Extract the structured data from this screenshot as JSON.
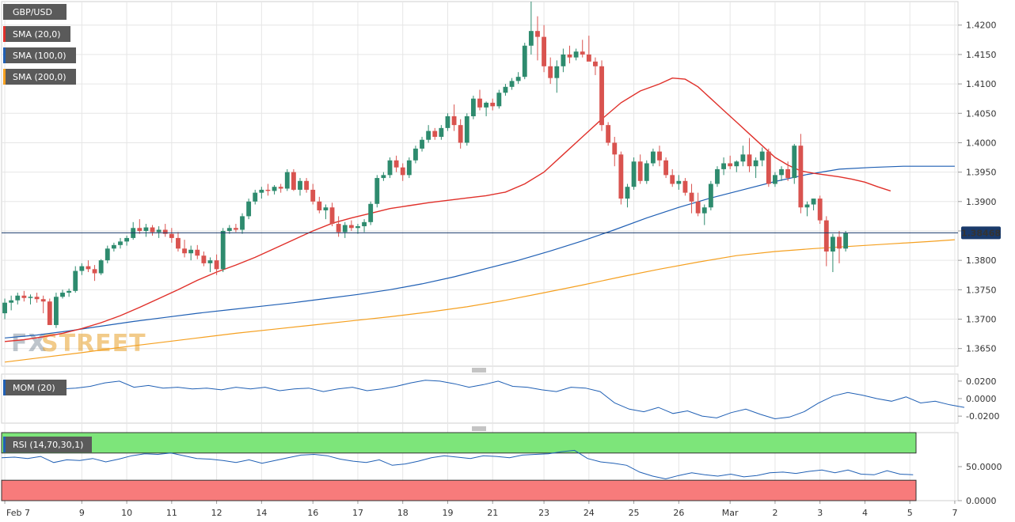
{
  "chart_data": {
    "type": "candlestick",
    "symbol": "GBP/USD",
    "last_price_label": "1.38468",
    "last_price": 1.38468,
    "watermark": {
      "part1": "FX",
      "part2": "STREET"
    },
    "indicators": {
      "sma20": {
        "label": "SMA (20,0)",
        "color": "#e0302a"
      },
      "sma100": {
        "label": "SMA (100,0)",
        "color": "#1f5fb4"
      },
      "sma200": {
        "label": "SMA (200,0)",
        "color": "#f5a020"
      }
    },
    "colors": {
      "up": "#2e8b6e",
      "down": "#d9534f",
      "price_line": "#1a3a6b",
      "grid": "#e6e6e6"
    },
    "price_axis": {
      "ylim": [
        1.362,
        1.424
      ],
      "ticks": [
        "1.4200",
        "1.4150",
        "1.4100",
        "1.4050",
        "1.4000",
        "1.3950",
        "1.3900",
        "1.3850",
        "1.3800",
        "1.3750",
        "1.3700",
        "1.3650"
      ]
    },
    "x_ticks": [
      {
        "label": "Feb 7",
        "i": 0
      },
      {
        "label": "9",
        "i": 12
      },
      {
        "label": "10",
        "i": 19
      },
      {
        "label": "11",
        "i": 26
      },
      {
        "label": "12",
        "i": 33
      },
      {
        "label": "14",
        "i": 40
      },
      {
        "label": "16",
        "i": 48
      },
      {
        "label": "17",
        "i": 55
      },
      {
        "label": "18",
        "i": 62
      },
      {
        "label": "19",
        "i": 69
      },
      {
        "label": "21",
        "i": 76
      },
      {
        "label": "23",
        "i": 84
      },
      {
        "label": "24",
        "i": 91
      },
      {
        "label": "25",
        "i": 98
      },
      {
        "label": "26",
        "i": 105
      },
      {
        "label": "Mar",
        "i": 113
      },
      {
        "label": "2",
        "i": 120
      },
      {
        "label": "3",
        "i": 127
      },
      {
        "label": "4",
        "i": 134
      },
      {
        "label": "5",
        "i": 141
      },
      {
        "label": "7",
        "i": 148
      }
    ],
    "candles_ohlc": [
      [
        1.371,
        1.3735,
        1.37,
        1.3728
      ],
      [
        1.3728,
        1.374,
        1.3715,
        1.3732
      ],
      [
        1.3732,
        1.3745,
        1.3725,
        1.374
      ],
      [
        1.374,
        1.3748,
        1.373,
        1.3736
      ],
      [
        1.3736,
        1.3742,
        1.3725,
        1.3738
      ],
      [
        1.3738,
        1.3745,
        1.3728,
        1.3734
      ],
      [
        1.3734,
        1.374,
        1.371,
        1.373
      ],
      [
        1.373,
        1.3735,
        1.369,
        1.369
      ],
      [
        1.369,
        1.3745,
        1.3685,
        1.3738
      ],
      [
        1.3738,
        1.375,
        1.3735,
        1.3745
      ],
      [
        1.3745,
        1.3752,
        1.3738,
        1.3748
      ],
      [
        1.3748,
        1.379,
        1.3745,
        1.3782
      ],
      [
        1.3782,
        1.3795,
        1.3775,
        1.379
      ],
      [
        1.379,
        1.38,
        1.378,
        1.3785
      ],
      [
        1.3785,
        1.3792,
        1.3765,
        1.3778
      ],
      [
        1.3778,
        1.3802,
        1.3775,
        1.38
      ],
      [
        1.38,
        1.3825,
        1.3795,
        1.382
      ],
      [
        1.382,
        1.383,
        1.3815,
        1.3826
      ],
      [
        1.3826,
        1.3838,
        1.382,
        1.3832
      ],
      [
        1.3832,
        1.3842,
        1.3825,
        1.3838
      ],
      [
        1.3838,
        1.3865,
        1.3835,
        1.3855
      ],
      [
        1.3855,
        1.387,
        1.3845,
        1.385
      ],
      [
        1.385,
        1.3862,
        1.384,
        1.3856
      ],
      [
        1.3856,
        1.386,
        1.3842,
        1.3848
      ],
      [
        1.3848,
        1.3858,
        1.3838,
        1.3852
      ],
      [
        1.3852,
        1.3862,
        1.384,
        1.3845
      ],
      [
        1.3845,
        1.3855,
        1.383,
        1.3838
      ],
      [
        1.3838,
        1.3848,
        1.3815,
        1.382
      ],
      [
        1.382,
        1.3835,
        1.3805,
        1.3812
      ],
      [
        1.3812,
        1.3825,
        1.38,
        1.3818
      ],
      [
        1.3818,
        1.3826,
        1.3802,
        1.3808
      ],
      [
        1.3808,
        1.3815,
        1.379,
        1.3795
      ],
      [
        1.3795,
        1.3805,
        1.378,
        1.38
      ],
      [
        1.38,
        1.381,
        1.3775,
        1.3785
      ],
      [
        1.3785,
        1.3855,
        1.378,
        1.385
      ],
      [
        1.385,
        1.386,
        1.3845,
        1.3855
      ],
      [
        1.3855,
        1.3862,
        1.3848,
        1.3852
      ],
      [
        1.3852,
        1.388,
        1.3845,
        1.3875
      ],
      [
        1.3875,
        1.3905,
        1.387,
        1.39
      ],
      [
        1.39,
        1.392,
        1.3895,
        1.3915
      ],
      [
        1.3915,
        1.3925,
        1.3905,
        1.392
      ],
      [
        1.392,
        1.393,
        1.391,
        1.3918
      ],
      [
        1.3918,
        1.3928,
        1.3912,
        1.3925
      ],
      [
        1.3925,
        1.393,
        1.3915,
        1.3922
      ],
      [
        1.3922,
        1.3955,
        1.3918,
        1.395
      ],
      [
        1.395,
        1.3955,
        1.3918,
        1.392
      ],
      [
        1.392,
        1.394,
        1.391,
        1.3935
      ],
      [
        1.3935,
        1.394,
        1.3915,
        1.392
      ],
      [
        1.392,
        1.393,
        1.3895,
        1.39
      ],
      [
        1.39,
        1.3908,
        1.388,
        1.3885
      ],
      [
        1.3885,
        1.3895,
        1.387,
        1.389
      ],
      [
        1.389,
        1.3898,
        1.3858,
        1.3862
      ],
      [
        1.3862,
        1.3875,
        1.384,
        1.3848
      ],
      [
        1.3848,
        1.3865,
        1.3838,
        1.386
      ],
      [
        1.386,
        1.3868,
        1.385,
        1.3855
      ],
      [
        1.3855,
        1.3862,
        1.3845,
        1.3858
      ],
      [
        1.3858,
        1.387,
        1.3848,
        1.3865
      ],
      [
        1.3865,
        1.39,
        1.386,
        1.3896
      ],
      [
        1.3896,
        1.3945,
        1.389,
        1.394
      ],
      [
        1.394,
        1.395,
        1.3935,
        1.3945
      ],
      [
        1.3945,
        1.3975,
        1.394,
        1.397
      ],
      [
        1.397,
        1.3978,
        1.395,
        1.3958
      ],
      [
        1.3958,
        1.3965,
        1.3935,
        1.3945
      ],
      [
        1.3945,
        1.3975,
        1.394,
        1.397
      ],
      [
        1.397,
        1.3995,
        1.3965,
        1.399
      ],
      [
        1.399,
        1.401,
        1.3985,
        1.4005
      ],
      [
        1.4005,
        1.403,
        1.4,
        1.402
      ],
      [
        1.402,
        1.4025,
        1.4005,
        1.401
      ],
      [
        1.401,
        1.403,
        1.4005,
        1.4025
      ],
      [
        1.4025,
        1.405,
        1.402,
        1.4045
      ],
      [
        1.4045,
        1.4065,
        1.402,
        1.403
      ],
      [
        1.403,
        1.404,
        1.399,
        1.4
      ],
      [
        1.4,
        1.405,
        1.3995,
        1.4045
      ],
      [
        1.4045,
        1.408,
        1.404,
        1.4075
      ],
      [
        1.4075,
        1.409,
        1.4055,
        1.406
      ],
      [
        1.406,
        1.407,
        1.4045,
        1.4068
      ],
      [
        1.4068,
        1.4075,
        1.4055,
        1.4062
      ],
      [
        1.4062,
        1.409,
        1.4058,
        1.4085
      ],
      [
        1.4085,
        1.41,
        1.408,
        1.4095
      ],
      [
        1.4095,
        1.411,
        1.409,
        1.4105
      ],
      [
        1.4105,
        1.412,
        1.41,
        1.4112
      ],
      [
        1.4112,
        1.417,
        1.4108,
        1.4165
      ],
      [
        1.4165,
        1.424,
        1.415,
        1.419
      ],
      [
        1.419,
        1.4215,
        1.414,
        1.418
      ],
      [
        1.418,
        1.42,
        1.412,
        1.413
      ],
      [
        1.413,
        1.4145,
        1.41,
        1.411
      ],
      [
        1.411,
        1.414,
        1.4085,
        1.413
      ],
      [
        1.413,
        1.416,
        1.412,
        1.415
      ],
      [
        1.415,
        1.4165,
        1.4135,
        1.4145
      ],
      [
        1.4145,
        1.416,
        1.414,
        1.4155
      ],
      [
        1.4155,
        1.4175,
        1.4145,
        1.415
      ],
      [
        1.415,
        1.4182,
        1.414,
        1.4138
      ],
      [
        1.4138,
        1.4145,
        1.4115,
        1.413
      ],
      [
        1.413,
        1.414,
        1.402,
        1.403
      ],
      [
        1.403,
        1.4035,
        1.3995,
        1.4
      ],
      [
        1.4,
        1.401,
        1.396,
        1.398
      ],
      [
        1.398,
        1.3985,
        1.3895,
        1.3905
      ],
      [
        1.3905,
        1.393,
        1.389,
        1.3925
      ],
      [
        1.3925,
        1.3975,
        1.392,
        1.3968
      ],
      [
        1.3968,
        1.398,
        1.393,
        1.3935
      ],
      [
        1.3935,
        1.397,
        1.393,
        1.3965
      ],
      [
        1.3965,
        1.399,
        1.396,
        1.3985
      ],
      [
        1.3985,
        1.3995,
        1.396,
        1.397
      ],
      [
        1.397,
        1.3975,
        1.394,
        1.3945
      ],
      [
        1.3945,
        1.3955,
        1.3925,
        1.393
      ],
      [
        1.393,
        1.3945,
        1.392,
        1.3935
      ],
      [
        1.3935,
        1.394,
        1.391,
        1.3915
      ],
      [
        1.3915,
        1.393,
        1.388,
        1.39
      ],
      [
        1.39,
        1.3915,
        1.3875,
        1.388
      ],
      [
        1.388,
        1.3895,
        1.386,
        1.389
      ],
      [
        1.389,
        1.3935,
        1.3885,
        1.393
      ],
      [
        1.393,
        1.396,
        1.3925,
        1.3955
      ],
      [
        1.3955,
        1.3975,
        1.3945,
        1.3965
      ],
      [
        1.3965,
        1.3978,
        1.3955,
        1.396
      ],
      [
        1.396,
        1.397,
        1.395,
        1.3968
      ],
      [
        1.3968,
        1.3995,
        1.396,
        1.398
      ],
      [
        1.398,
        1.4008,
        1.395,
        1.396
      ],
      [
        1.396,
        1.3975,
        1.394,
        1.397
      ],
      [
        1.397,
        1.3992,
        1.396,
        1.3985
      ],
      [
        1.3985,
        1.399,
        1.3925,
        1.393
      ],
      [
        1.393,
        1.395,
        1.3925,
        1.3945
      ],
      [
        1.3945,
        1.396,
        1.3935,
        1.3955
      ],
      [
        1.3955,
        1.3968,
        1.3935,
        1.394
      ],
      [
        1.394,
        1.3998,
        1.393,
        1.3995
      ],
      [
        1.3995,
        1.4015,
        1.388,
        1.389
      ],
      [
        1.389,
        1.39,
        1.3875,
        1.3895
      ],
      [
        1.3895,
        1.3905,
        1.3885,
        1.3905
      ],
      [
        1.3905,
        1.391,
        1.3862,
        1.3868
      ],
      [
        1.3868,
        1.3875,
        1.379,
        1.3815
      ],
      [
        1.3815,
        1.3845,
        1.378,
        1.384
      ],
      [
        1.384,
        1.385,
        1.3795,
        1.382
      ],
      [
        1.382,
        1.385,
        1.3815,
        1.3846
      ]
    ],
    "sma20": [
      1.3662,
      1.3665,
      1.367,
      1.3676,
      1.3684,
      1.3694,
      1.3706,
      1.372,
      1.3735,
      1.375,
      1.3766,
      1.378,
      1.3792,
      1.3805,
      1.382,
      1.3835,
      1.385,
      1.3863,
      1.3872,
      1.388,
      1.3888,
      1.3893,
      1.3898,
      1.3902,
      1.3906,
      1.391,
      1.3916,
      1.393,
      1.395,
      1.398,
      1.401,
      1.404,
      1.4068,
      1.4088,
      1.41,
      1.411,
      1.4108,
      1.4095,
      1.4075,
      1.4055,
      1.4035,
      1.4015,
      1.3995,
      1.3975,
      1.3962,
      1.3952,
      1.3948,
      1.3945,
      1.3942,
      1.3938,
      1.3933,
      1.3925,
      1.3918
    ],
    "sma20_x": [
      0,
      3,
      6,
      9,
      12,
      15,
      18,
      21,
      24,
      27,
      30,
      33,
      36,
      39,
      42,
      45,
      48,
      51,
      54,
      57,
      60,
      63,
      66,
      69,
      72,
      75,
      78,
      81,
      84,
      87,
      90,
      93,
      96,
      99,
      102,
      104,
      106,
      108,
      110,
      112,
      114,
      116,
      118,
      120,
      122,
      124,
      126,
      128,
      130,
      132,
      134,
      136,
      138
    ],
    "sma100": [
      1.3668,
      1.3673,
      1.368,
      1.3688,
      1.3696,
      1.3703,
      1.371,
      1.3716,
      1.3722,
      1.3728,
      1.3735,
      1.3742,
      1.375,
      1.376,
      1.3772,
      1.3786,
      1.38,
      1.3816,
      1.3833,
      1.3852,
      1.3872,
      1.389,
      1.3906,
      1.392,
      1.3934,
      1.3946,
      1.3955,
      1.3958,
      1.396,
      1.396
    ],
    "sma100_x": [
      0,
      5,
      10,
      15,
      20,
      25,
      30,
      35,
      40,
      45,
      50,
      55,
      60,
      65,
      70,
      75,
      80,
      85,
      90,
      95,
      100,
      105,
      110,
      115,
      120,
      125,
      130,
      135,
      140,
      148
    ],
    "sma200": [
      1.3627,
      1.3635,
      1.3643,
      1.3652,
      1.366,
      1.3668,
      1.3676,
      1.3683,
      1.369,
      1.3697,
      1.3704,
      1.3712,
      1.3721,
      1.3732,
      1.3745,
      1.3758,
      1.3772,
      1.3785,
      1.3797,
      1.3808,
      1.3815,
      1.382,
      1.3824,
      1.3828,
      1.3832,
      1.3835
    ],
    "sma200_x": [
      0,
      6,
      12,
      18,
      24,
      30,
      36,
      42,
      48,
      54,
      60,
      66,
      72,
      78,
      84,
      90,
      96,
      102,
      108,
      114,
      120,
      126,
      132,
      138,
      144,
      148
    ],
    "mom": {
      "label": "MOM (20)",
      "ticks": [
        "0.0200",
        "0.0000",
        "-0.0200"
      ],
      "ylim": [
        -0.028,
        0.028
      ],
      "values": [
        0.014,
        0.016,
        0.013,
        0.011,
        0.012,
        0.014,
        0.018,
        0.02,
        0.013,
        0.015,
        0.012,
        0.013,
        0.011,
        0.012,
        0.01,
        0.013,
        0.011,
        0.013,
        0.009,
        0.011,
        0.012,
        0.008,
        0.011,
        0.013,
        0.009,
        0.011,
        0.014,
        0.018,
        0.021,
        0.02,
        0.017,
        0.013,
        0.016,
        0.02,
        0.014,
        0.013,
        0.01,
        0.008,
        0.013,
        0.012,
        0.008,
        -0.005,
        -0.012,
        -0.015,
        -0.01,
        -0.017,
        -0.014,
        -0.02,
        -0.022,
        -0.016,
        -0.012,
        -0.018,
        -0.023,
        -0.021,
        -0.015,
        -0.005,
        0.003,
        0.007,
        0.004,
        0.0,
        -0.003,
        0.002,
        -0.005,
        -0.003,
        -0.007,
        -0.01
      ],
      "x_step": 2.3
    },
    "rsi": {
      "label": "RSI (14,70,30,1)",
      "ticks": [
        "50.0000",
        "0.0000"
      ],
      "ylim": [
        0,
        100
      ],
      "overbought": 70,
      "oversold": 30,
      "values": [
        63,
        64,
        62,
        65,
        56,
        60,
        59,
        62,
        57,
        61,
        66,
        69,
        68,
        70,
        66,
        62,
        61,
        59,
        56,
        60,
        55,
        59,
        63,
        67,
        68,
        66,
        61,
        58,
        56,
        60,
        52,
        54,
        58,
        63,
        66,
        64,
        62,
        66,
        65,
        63,
        67,
        68,
        69,
        72,
        74,
        62,
        57,
        55,
        52,
        42,
        36,
        32,
        37,
        41,
        38,
        36,
        39,
        35,
        37,
        41,
        42,
        40,
        43,
        45,
        41,
        45,
        39,
        38,
        44,
        39,
        38
      ],
      "x_step": 2.15
    }
  }
}
